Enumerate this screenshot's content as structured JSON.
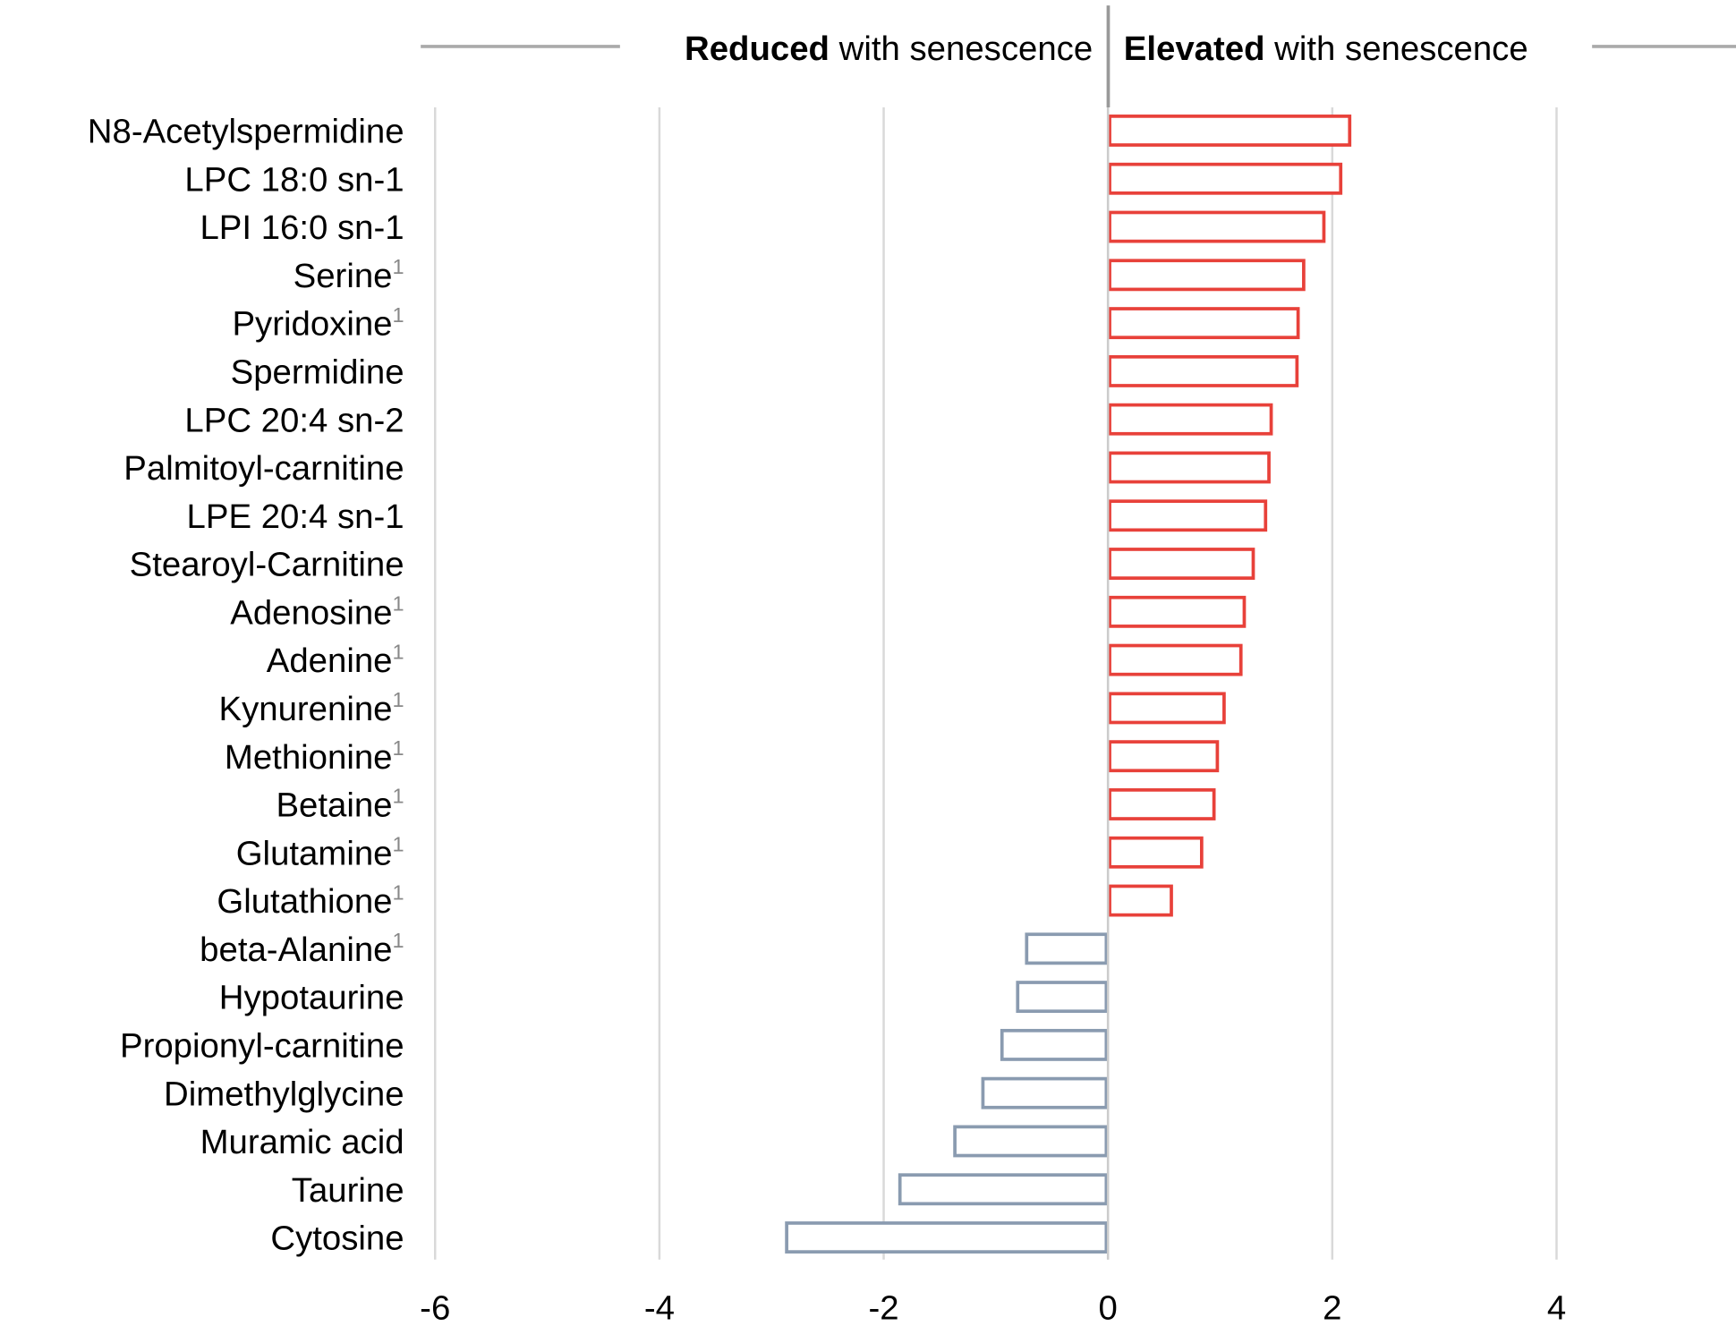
{
  "chart_data": {
    "type": "bar",
    "orientation": "horizontal",
    "header_left": {
      "bold": "Reduced",
      "rest": "with senescence"
    },
    "header_right": {
      "bold": "Elevated",
      "rest": "with senescence"
    },
    "categories": [
      "N8-Acetylspermidine",
      "LPC 18:0 sn-1",
      "LPI 16:0 sn-1",
      "Serine",
      "Pyridoxine",
      "Spermidine",
      "LPC 20:4 sn-2",
      "Palmitoyl-carnitine",
      "LPE 20:4 sn-1",
      "Stearoyl-Carnitine",
      "Adenosine",
      "Adenine",
      "Kynurenine",
      "Methionine",
      "Betaine",
      "Glutamine",
      "Glutathione",
      "beta-Alanine",
      "Hypotaurine",
      "Propionyl-carnitine",
      "Dimethylglycine",
      "Muramic acid",
      "Taurine",
      "Cytosine"
    ],
    "category_notes": [
      null,
      null,
      null,
      "1",
      "1",
      null,
      null,
      null,
      null,
      null,
      "1",
      "1",
      "1",
      "1",
      "1",
      "1",
      "1",
      "1",
      null,
      null,
      null,
      null,
      null,
      null
    ],
    "values": [
      2.17,
      2.09,
      1.94,
      1.76,
      1.71,
      1.7,
      1.47,
      1.45,
      1.42,
      1.31,
      1.23,
      1.2,
      1.05,
      0.99,
      0.96,
      0.85,
      0.58,
      -0.74,
      -0.82,
      -0.96,
      -1.13,
      -1.38,
      -1.87,
      -2.88
    ],
    "color_positive": "#e8413a",
    "color_negative": "#8a9bb0",
    "xlim": [
      -6,
      5.6
    ],
    "xticks": [
      -6,
      -4,
      -2,
      0,
      2,
      4
    ],
    "grid": true
  }
}
